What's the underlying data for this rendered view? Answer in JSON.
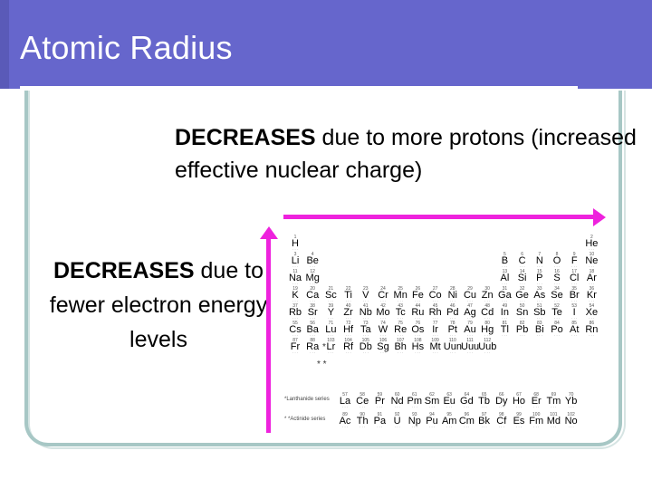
{
  "slide": {
    "title": "Atomic Radius",
    "top_note_bold": "DECREASES",
    "top_note_rest": " due to more protons (increased effective nuclear charge)",
    "left_note_bold": "DECREASES",
    "left_note_rest": " due to fewer electron energy levels"
  },
  "colors": {
    "title_bar": "#6666cc",
    "arrow": "#ee22dd",
    "frame": "#a7c7c5"
  },
  "periodic_table": {
    "main": [
      {
        "n": "1",
        "s": "H",
        "r": 0,
        "c": 0
      },
      {
        "n": "2",
        "s": "He",
        "r": 0,
        "c": 17
      },
      {
        "n": "3",
        "s": "Li",
        "r": 1,
        "c": 0
      },
      {
        "n": "4",
        "s": "Be",
        "r": 1,
        "c": 1
      },
      {
        "n": "5",
        "s": "B",
        "r": 1,
        "c": 12
      },
      {
        "n": "6",
        "s": "C",
        "r": 1,
        "c": 13
      },
      {
        "n": "7",
        "s": "N",
        "r": 1,
        "c": 14
      },
      {
        "n": "8",
        "s": "O",
        "r": 1,
        "c": 15
      },
      {
        "n": "9",
        "s": "F",
        "r": 1,
        "c": 16
      },
      {
        "n": "10",
        "s": "Ne",
        "r": 1,
        "c": 17
      },
      {
        "n": "11",
        "s": "Na",
        "r": 2,
        "c": 0
      },
      {
        "n": "12",
        "s": "Mg",
        "r": 2,
        "c": 1
      },
      {
        "n": "13",
        "s": "Al",
        "r": 2,
        "c": 12
      },
      {
        "n": "14",
        "s": "Si",
        "r": 2,
        "c": 13
      },
      {
        "n": "15",
        "s": "P",
        "r": 2,
        "c": 14
      },
      {
        "n": "16",
        "s": "S",
        "r": 2,
        "c": 15
      },
      {
        "n": "17",
        "s": "Cl",
        "r": 2,
        "c": 16
      },
      {
        "n": "18",
        "s": "Ar",
        "r": 2,
        "c": 17
      },
      {
        "n": "19",
        "s": "K",
        "r": 3,
        "c": 0
      },
      {
        "n": "20",
        "s": "Ca",
        "r": 3,
        "c": 1
      },
      {
        "n": "21",
        "s": "Sc",
        "r": 3,
        "c": 2
      },
      {
        "n": "22",
        "s": "Ti",
        "r": 3,
        "c": 3
      },
      {
        "n": "23",
        "s": "V",
        "r": 3,
        "c": 4
      },
      {
        "n": "24",
        "s": "Cr",
        "r": 3,
        "c": 5
      },
      {
        "n": "25",
        "s": "Mn",
        "r": 3,
        "c": 6
      },
      {
        "n": "26",
        "s": "Fe",
        "r": 3,
        "c": 7
      },
      {
        "n": "27",
        "s": "Co",
        "r": 3,
        "c": 8
      },
      {
        "n": "28",
        "s": "Ni",
        "r": 3,
        "c": 9
      },
      {
        "n": "29",
        "s": "Cu",
        "r": 3,
        "c": 10
      },
      {
        "n": "30",
        "s": "Zn",
        "r": 3,
        "c": 11
      },
      {
        "n": "31",
        "s": "Ga",
        "r": 3,
        "c": 12
      },
      {
        "n": "32",
        "s": "Ge",
        "r": 3,
        "c": 13
      },
      {
        "n": "33",
        "s": "As",
        "r": 3,
        "c": 14
      },
      {
        "n": "34",
        "s": "Se",
        "r": 3,
        "c": 15
      },
      {
        "n": "35",
        "s": "Br",
        "r": 3,
        "c": 16
      },
      {
        "n": "36",
        "s": "Kr",
        "r": 3,
        "c": 17
      },
      {
        "n": "37",
        "s": "Rb",
        "r": 4,
        "c": 0
      },
      {
        "n": "38",
        "s": "Sr",
        "r": 4,
        "c": 1
      },
      {
        "n": "39",
        "s": "Y",
        "r": 4,
        "c": 2
      },
      {
        "n": "40",
        "s": "Zr",
        "r": 4,
        "c": 3
      },
      {
        "n": "41",
        "s": "Nb",
        "r": 4,
        "c": 4
      },
      {
        "n": "42",
        "s": "Mo",
        "r": 4,
        "c": 5
      },
      {
        "n": "43",
        "s": "Tc",
        "r": 4,
        "c": 6
      },
      {
        "n": "44",
        "s": "Ru",
        "r": 4,
        "c": 7
      },
      {
        "n": "45",
        "s": "Rh",
        "r": 4,
        "c": 8
      },
      {
        "n": "46",
        "s": "Pd",
        "r": 4,
        "c": 9
      },
      {
        "n": "47",
        "s": "Ag",
        "r": 4,
        "c": 10
      },
      {
        "n": "48",
        "s": "Cd",
        "r": 4,
        "c": 11
      },
      {
        "n": "49",
        "s": "In",
        "r": 4,
        "c": 12
      },
      {
        "n": "50",
        "s": "Sn",
        "r": 4,
        "c": 13
      },
      {
        "n": "51",
        "s": "Sb",
        "r": 4,
        "c": 14
      },
      {
        "n": "52",
        "s": "Te",
        "r": 4,
        "c": 15
      },
      {
        "n": "53",
        "s": "I",
        "r": 4,
        "c": 16
      },
      {
        "n": "54",
        "s": "Xe",
        "r": 4,
        "c": 17
      },
      {
        "n": "55",
        "s": "Cs",
        "r": 5,
        "c": 0
      },
      {
        "n": "56",
        "s": "Ba",
        "r": 5,
        "c": 1
      },
      {
        "n": "71",
        "s": "Lu",
        "r": 5,
        "c": 2
      },
      {
        "n": "72",
        "s": "Hf",
        "r": 5,
        "c": 3
      },
      {
        "n": "73",
        "s": "Ta",
        "r": 5,
        "c": 4
      },
      {
        "n": "74",
        "s": "W",
        "r": 5,
        "c": 5
      },
      {
        "n": "75",
        "s": "Re",
        "r": 5,
        "c": 6
      },
      {
        "n": "76",
        "s": "Os",
        "r": 5,
        "c": 7
      },
      {
        "n": "77",
        "s": "Ir",
        "r": 5,
        "c": 8
      },
      {
        "n": "78",
        "s": "Pt",
        "r": 5,
        "c": 9
      },
      {
        "n": "79",
        "s": "Au",
        "r": 5,
        "c": 10
      },
      {
        "n": "80",
        "s": "Hg",
        "r": 5,
        "c": 11
      },
      {
        "n": "81",
        "s": "Tl",
        "r": 5,
        "c": 12
      },
      {
        "n": "82",
        "s": "Pb",
        "r": 5,
        "c": 13
      },
      {
        "n": "83",
        "s": "Bi",
        "r": 5,
        "c": 14
      },
      {
        "n": "84",
        "s": "Po",
        "r": 5,
        "c": 15
      },
      {
        "n": "85",
        "s": "At",
        "r": 5,
        "c": 16
      },
      {
        "n": "86",
        "s": "Rn",
        "r": 5,
        "c": 17
      },
      {
        "n": "87",
        "s": "Fr",
        "r": 6,
        "c": 0
      },
      {
        "n": "88",
        "s": "Ra",
        "r": 6,
        "c": 1
      },
      {
        "n": "103",
        "s": "Lr",
        "r": 6,
        "c": 2
      },
      {
        "n": "104",
        "s": "Rf",
        "r": 6,
        "c": 3
      },
      {
        "n": "105",
        "s": "Db",
        "r": 6,
        "c": 4
      },
      {
        "n": "106",
        "s": "Sg",
        "r": 6,
        "c": 5
      },
      {
        "n": "107",
        "s": "Bh",
        "r": 6,
        "c": 6
      },
      {
        "n": "108",
        "s": "Hs",
        "r": 6,
        "c": 7
      },
      {
        "n": "109",
        "s": "Mt",
        "r": 6,
        "c": 8
      },
      {
        "n": "110",
        "s": "Uun",
        "r": 6,
        "c": 9
      },
      {
        "n": "111",
        "s": "Uuu",
        "r": 6,
        "c": 10
      },
      {
        "n": "112",
        "s": "Uub",
        "r": 6,
        "c": 11
      }
    ],
    "lanthanide_label": "*Lanthanide series",
    "actinide_label": "* *Actinide series",
    "lanthanides": [
      {
        "n": "57",
        "s": "La"
      },
      {
        "n": "58",
        "s": "Ce"
      },
      {
        "n": "59",
        "s": "Pr"
      },
      {
        "n": "60",
        "s": "Nd"
      },
      {
        "n": "61",
        "s": "Pm"
      },
      {
        "n": "62",
        "s": "Sm"
      },
      {
        "n": "63",
        "s": "Eu"
      },
      {
        "n": "64",
        "s": "Gd"
      },
      {
        "n": "65",
        "s": "Tb"
      },
      {
        "n": "66",
        "s": "Dy"
      },
      {
        "n": "67",
        "s": "Ho"
      },
      {
        "n": "68",
        "s": "Er"
      },
      {
        "n": "69",
        "s": "Tm"
      },
      {
        "n": "70",
        "s": "Yb"
      }
    ],
    "actinides": [
      {
        "n": "89",
        "s": "Ac"
      },
      {
        "n": "90",
        "s": "Th"
      },
      {
        "n": "91",
        "s": "Pa"
      },
      {
        "n": "92",
        "s": "U"
      },
      {
        "n": "93",
        "s": "Np"
      },
      {
        "n": "94",
        "s": "Pu"
      },
      {
        "n": "95",
        "s": "Am"
      },
      {
        "n": "96",
        "s": "Cm"
      },
      {
        "n": "97",
        "s": "Bk"
      },
      {
        "n": "98",
        "s": "Cf"
      },
      {
        "n": "99",
        "s": "Es"
      },
      {
        "n": "100",
        "s": "Fm"
      },
      {
        "n": "101",
        "s": "Md"
      },
      {
        "n": "102",
        "s": "No"
      }
    ],
    "star_lanthanide": "*",
    "star_actinide": "* *"
  }
}
